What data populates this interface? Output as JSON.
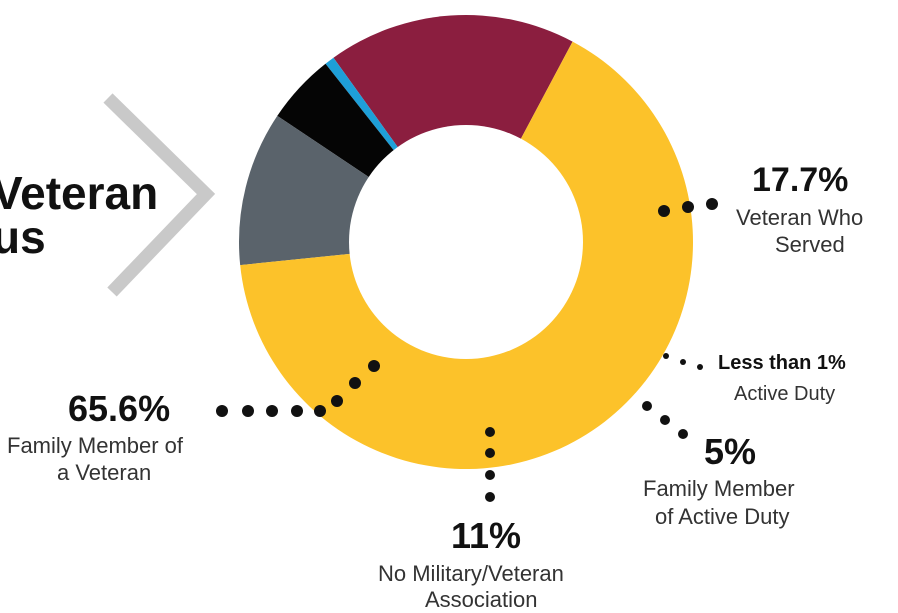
{
  "cut_title": {
    "line1": "Veteran",
    "line2": "us"
  },
  "chart_data": {
    "type": "pie",
    "donut": true,
    "slices": [
      {
        "label": "Veteran Who Served",
        "percent_text": "17.7%",
        "value": 17.7,
        "color": "#8B1E3F"
      },
      {
        "label": "Active Duty",
        "percent_text": "Less than 1%",
        "value": 0.7,
        "color": "#1E9FD8"
      },
      {
        "label": "Family Member of Active Duty",
        "percent_text": "5%",
        "value": 5.0,
        "color": "#050505"
      },
      {
        "label": "No Military/Veteran Association",
        "percent_text": "11%",
        "value": 11.0,
        "color": "#5A636B"
      },
      {
        "label": "Family Member of a Veteran",
        "percent_text": "65.6%",
        "value": 65.6,
        "color": "#FCC22A"
      }
    ],
    "labels": {
      "veteran_pct": "17.7%",
      "veteran_line1": "Veteran Who",
      "veteran_line2": "Served",
      "active_pct": "Less than 1%",
      "active_line1": "Active Duty",
      "famactive_pct": "5%",
      "famactive_line1": "Family Member",
      "famactive_line2": "of Active Duty",
      "none_pct": "11%",
      "none_line1": "No Military/Veteran",
      "none_line2": "Association",
      "famvet_pct": "65.6%",
      "famvet_line1": "Family Member of",
      "famvet_line2": "a Veteran"
    }
  }
}
